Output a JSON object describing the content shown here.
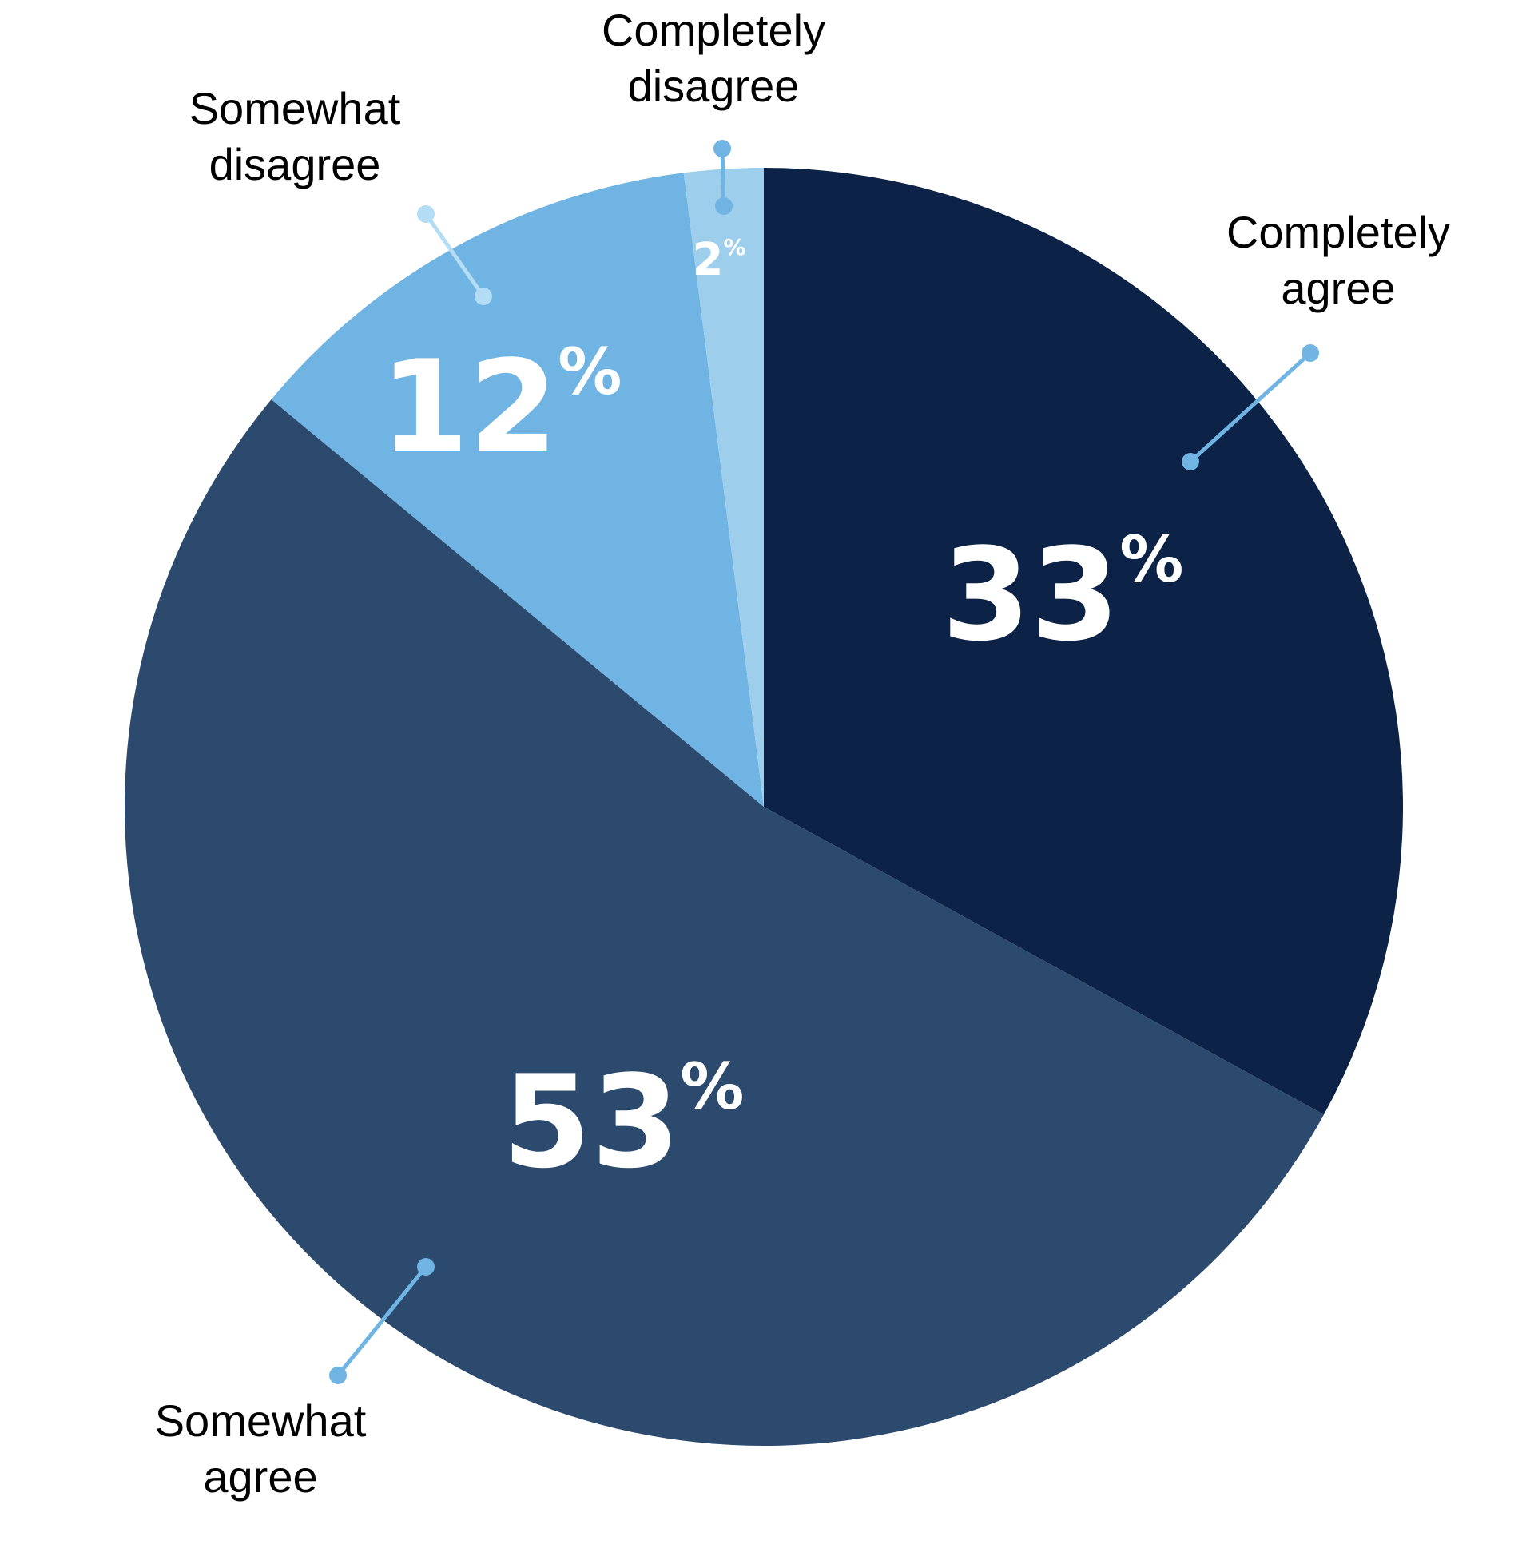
{
  "chart_data": {
    "type": "pie",
    "start": "12 o'clock",
    "direction": "clockwise",
    "slices": [
      {
        "label_line1": "Completely",
        "label_line2": "agree",
        "value": 33,
        "number": "33",
        "sign": "%",
        "color": "#0c2246",
        "leader_color": "#6fb4e2"
      },
      {
        "label_line1": "Somewhat",
        "label_line2": "agree",
        "value": 53,
        "number": "53",
        "sign": "%",
        "color": "#2c4a6e",
        "leader_color": "#6fb4e2"
      },
      {
        "label_line1": "Somewhat",
        "label_line2": "disagree",
        "value": 12,
        "number": "12",
        "sign": "%",
        "color": "#6fb4e2",
        "leader_color": "#b3dcf5"
      },
      {
        "label_line1": "Completely",
        "label_line2": "disagree",
        "value": 2,
        "number": "2",
        "sign": "%",
        "color": "#9dceec",
        "leader_color": "#6fb4e2"
      }
    ]
  }
}
